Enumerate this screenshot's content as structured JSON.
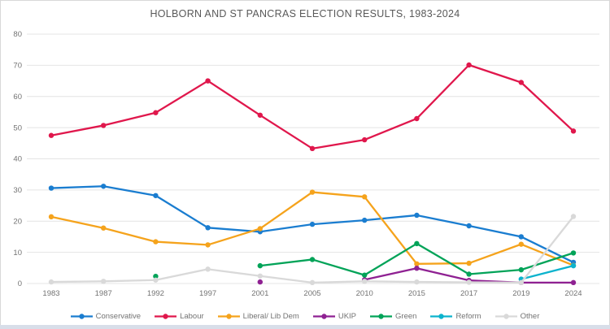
{
  "page": {
    "title": "HOLBORN AND ST PANCRAS ELECTION RESULTS, 1983-2024"
  },
  "chart_data": {
    "type": "line",
    "title": "HOLBORN AND ST PANCRAS ELECTION RESULTS, 1983-2024",
    "xlabel": "",
    "ylabel": "",
    "ylim": [
      0,
      80
    ],
    "ytick_interval": 10,
    "y_tick_labels": [
      "0",
      "10",
      "20",
      "30",
      "40",
      "50",
      "60",
      "70",
      "80"
    ],
    "grid": "horizontal",
    "legend_position": "bottom",
    "categories": [
      "1983",
      "1987",
      "1992",
      "1997",
      "2001",
      "2005",
      "2010",
      "2015",
      "2017",
      "2019",
      "2024"
    ],
    "series": [
      {
        "name": "Conservative",
        "color": "#1a7dd0",
        "values": [
          30.6,
          31.2,
          28.2,
          17.9,
          16.6,
          19.0,
          20.3,
          21.9,
          18.5,
          15.0,
          6.8
        ]
      },
      {
        "name": "Labour",
        "color": "#e0174c",
        "values": [
          47.5,
          50.7,
          54.8,
          65.0,
          54.0,
          43.3,
          46.1,
          52.9,
          70.1,
          64.5,
          48.9
        ]
      },
      {
        "name": "Liberal/ Lib Dem",
        "color": "#f5a31c",
        "values": [
          21.4,
          17.8,
          13.4,
          12.4,
          17.6,
          29.3,
          27.8,
          6.3,
          6.5,
          12.6,
          5.8
        ]
      },
      {
        "name": "UKIP",
        "color": "#8f2192",
        "values": [
          null,
          null,
          null,
          null,
          0.5,
          null,
          1.2,
          4.9,
          1.0,
          0.3,
          0.3
        ]
      },
      {
        "name": "Green",
        "color": "#02a358",
        "values": [
          null,
          null,
          2.3,
          null,
          5.7,
          7.7,
          2.7,
          12.8,
          3.0,
          4.4,
          9.8
        ]
      },
      {
        "name": "Reform",
        "color": "#0cb3cd",
        "values": [
          null,
          null,
          null,
          null,
          null,
          null,
          null,
          null,
          null,
          1.4,
          5.7
        ]
      },
      {
        "name": "Other",
        "color": "#d9d9d9",
        "values": [
          0.5,
          0.7,
          1.1,
          4.6,
          2.4,
          0.3,
          0.7,
          0.5,
          0.4,
          0.3,
          21.5
        ]
      }
    ],
    "colors": {
      "title_text": "#595959",
      "axis_text": "#737373",
      "gridline": "#e4e4e4"
    }
  }
}
